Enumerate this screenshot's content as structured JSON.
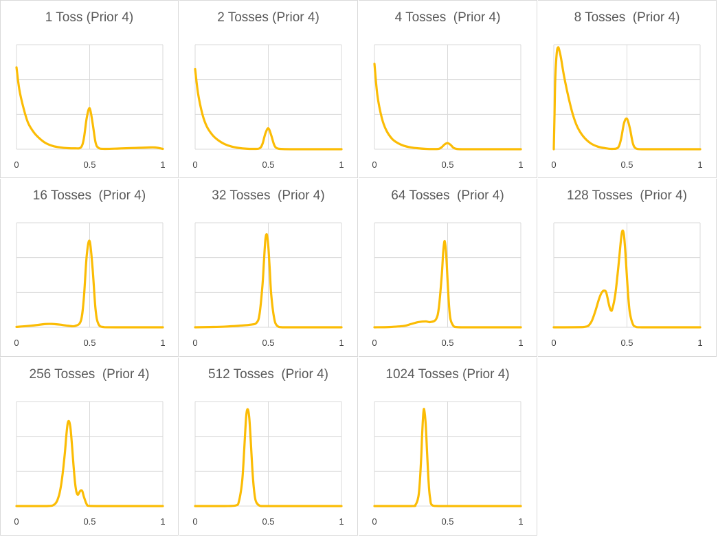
{
  "colors": {
    "series": "#fbbc05",
    "grid": "#d9d9d9",
    "title": "#595959",
    "tick": "#404040"
  },
  "chart_data": [
    {
      "type": "line",
      "title": "1 Toss (Prior 4)",
      "xlim": [
        0,
        1
      ],
      "ylim": [
        0,
        6
      ],
      "xticks": [
        "0",
        "0.5",
        "1"
      ],
      "grid": true,
      "series": [
        {
          "x": [
            0,
            0.02,
            0.05,
            0.08,
            0.12,
            0.16,
            0.2,
            0.25,
            0.3,
            0.35,
            0.4,
            0.44,
            0.46,
            0.48,
            0.5,
            0.52,
            0.54,
            0.56,
            0.6,
            0.7,
            0.8,
            0.9,
            0.95,
            1.0
          ],
          "y": [
            4.7,
            3.4,
            2.3,
            1.5,
            0.95,
            0.6,
            0.35,
            0.18,
            0.1,
            0.06,
            0.05,
            0.1,
            0.6,
            1.8,
            2.35,
            1.5,
            0.4,
            0.08,
            0.02,
            0.04,
            0.07,
            0.1,
            0.1,
            0.02
          ]
        }
      ]
    },
    {
      "type": "line",
      "title": "2 Tosses (Prior 4)",
      "xlim": [
        0,
        1
      ],
      "ylim": [
        0,
        6
      ],
      "xticks": [
        "0",
        "0.5",
        "1"
      ],
      "grid": true,
      "series": [
        {
          "x": [
            0,
            0.02,
            0.05,
            0.08,
            0.12,
            0.16,
            0.2,
            0.25,
            0.3,
            0.35,
            0.4,
            0.44,
            0.46,
            0.48,
            0.5,
            0.52,
            0.54,
            0.56,
            0.6,
            0.7,
            0.8,
            0.9,
            1.0
          ],
          "y": [
            4.6,
            3.2,
            2.0,
            1.3,
            0.8,
            0.5,
            0.3,
            0.15,
            0.07,
            0.03,
            0.02,
            0.05,
            0.3,
            0.9,
            1.2,
            0.8,
            0.25,
            0.05,
            0.01,
            0,
            0,
            0,
            0
          ]
        }
      ]
    },
    {
      "type": "line",
      "title": "4 Tosses  (Prior 4)",
      "xlim": [
        0,
        1
      ],
      "ylim": [
        0,
        6
      ],
      "xticks": [
        "0",
        "0.5",
        "1"
      ],
      "grid": true,
      "series": [
        {
          "x": [
            0,
            0.02,
            0.05,
            0.08,
            0.12,
            0.16,
            0.2,
            0.25,
            0.3,
            0.35,
            0.4,
            0.44,
            0.46,
            0.48,
            0.5,
            0.52,
            0.54,
            0.56,
            0.6,
            0.7,
            0.8,
            0.9,
            1.0
          ],
          "y": [
            4.9,
            3.1,
            1.8,
            1.1,
            0.6,
            0.35,
            0.2,
            0.1,
            0.05,
            0.02,
            0.01,
            0.02,
            0.12,
            0.28,
            0.35,
            0.25,
            0.08,
            0.02,
            0,
            0,
            0,
            0,
            0
          ]
        }
      ]
    },
    {
      "type": "line",
      "title": "8 Tosses  (Prior 4)",
      "xlim": [
        0,
        1
      ],
      "ylim": [
        0,
        6
      ],
      "xticks": [
        "0",
        "0.5",
        "1"
      ],
      "grid": true,
      "series": [
        {
          "x": [
            0,
            0.005,
            0.01,
            0.02,
            0.03,
            0.04,
            0.05,
            0.07,
            0.1,
            0.13,
            0.16,
            0.2,
            0.25,
            0.3,
            0.35,
            0.4,
            0.44,
            0.46,
            0.48,
            0.5,
            0.52,
            0.54,
            0.56,
            0.6,
            0.7,
            0.8,
            0.9,
            1.0
          ],
          "y": [
            0,
            2.0,
            4.0,
            5.5,
            5.85,
            5.6,
            5.2,
            4.2,
            3.0,
            2.0,
            1.3,
            0.75,
            0.35,
            0.15,
            0.06,
            0.02,
            0.1,
            0.6,
            1.5,
            1.75,
            1.2,
            0.35,
            0.05,
            0,
            0,
            0,
            0,
            0
          ]
        }
      ]
    },
    {
      "type": "line",
      "title": "16 Tosses  (Prior 4)",
      "xlim": [
        0,
        1
      ],
      "ylim": [
        0,
        8
      ],
      "xticks": [
        "0",
        "0.5",
        "1"
      ],
      "grid": true,
      "series": [
        {
          "x": [
            0,
            0.1,
            0.2,
            0.25,
            0.3,
            0.35,
            0.4,
            0.44,
            0.46,
            0.48,
            0.5,
            0.52,
            0.54,
            0.56,
            0.6,
            0.7,
            0.8,
            0.9,
            1.0
          ],
          "y": [
            0.03,
            0.12,
            0.25,
            0.25,
            0.2,
            0.12,
            0.1,
            0.5,
            2.2,
            5.5,
            6.6,
            4.5,
            1.4,
            0.25,
            0.01,
            0,
            0,
            0,
            0
          ]
        }
      ]
    },
    {
      "type": "line",
      "title": "32 Tosses  (Prior 4)",
      "xlim": [
        0,
        1
      ],
      "ylim": [
        0,
        8
      ],
      "xticks": [
        "0",
        "0.5",
        "1"
      ],
      "grid": true,
      "series": [
        {
          "x": [
            0,
            0.1,
            0.2,
            0.3,
            0.38,
            0.42,
            0.44,
            0.46,
            0.47,
            0.48,
            0.49,
            0.5,
            0.51,
            0.52,
            0.54,
            0.56,
            0.6,
            0.7,
            0.8,
            1.0
          ],
          "y": [
            0,
            0.02,
            0.05,
            0.12,
            0.2,
            0.35,
            1.0,
            3.2,
            5.0,
            6.7,
            7.1,
            6.2,
            4.4,
            2.5,
            0.7,
            0.12,
            0,
            0,
            0,
            0
          ]
        }
      ]
    },
    {
      "type": "line",
      "title": "64 Tosses  (Prior 4)",
      "xlim": [
        0,
        1
      ],
      "ylim": [
        0,
        8
      ],
      "xticks": [
        "0",
        "0.5",
        "1"
      ],
      "grid": true,
      "series": [
        {
          "x": [
            0,
            0.1,
            0.2,
            0.25,
            0.3,
            0.35,
            0.38,
            0.42,
            0.44,
            0.46,
            0.47,
            0.48,
            0.49,
            0.5,
            0.51,
            0.52,
            0.54,
            0.56,
            0.6,
            0.7,
            0.8,
            1.0
          ],
          "y": [
            0,
            0.02,
            0.1,
            0.25,
            0.4,
            0.45,
            0.4,
            0.6,
            1.5,
            4.0,
            5.8,
            6.6,
            5.6,
            3.5,
            1.6,
            0.6,
            0.1,
            0.02,
            0,
            0,
            0,
            0
          ]
        }
      ]
    },
    {
      "type": "line",
      "title": "128 Tosses  (Prior 4)",
      "xlim": [
        0,
        1
      ],
      "ylim": [
        0,
        8
      ],
      "xticks": [
        "0",
        "0.5",
        "1"
      ],
      "grid": true,
      "series": [
        {
          "x": [
            0,
            0.2,
            0.25,
            0.28,
            0.31,
            0.33,
            0.35,
            0.36,
            0.37,
            0.38,
            0.39,
            0.4,
            0.42,
            0.44,
            0.46,
            0.47,
            0.48,
            0.49,
            0.5,
            0.51,
            0.52,
            0.54,
            0.56,
            0.6,
            0.8,
            1.0
          ],
          "y": [
            0,
            0.02,
            0.3,
            1.1,
            2.2,
            2.7,
            2.8,
            2.6,
            2.1,
            1.6,
            1.3,
            1.4,
            2.5,
            4.5,
            6.8,
            7.4,
            7.0,
            5.6,
            3.8,
            2.2,
            1.1,
            0.25,
            0.04,
            0,
            0,
            0
          ]
        }
      ]
    },
    {
      "type": "line",
      "title": "256 Tosses  (Prior 4)",
      "xlim": [
        0,
        1
      ],
      "ylim": [
        0,
        12
      ],
      "xticks": [
        "0",
        "0.5",
        "1"
      ],
      "grid": true,
      "series": [
        {
          "x": [
            0,
            0.2,
            0.26,
            0.29,
            0.31,
            0.33,
            0.34,
            0.35,
            0.36,
            0.37,
            0.38,
            0.39,
            0.4,
            0.41,
            0.42,
            0.43,
            0.44,
            0.45,
            0.46,
            0.48,
            0.5,
            0.6,
            1.0
          ],
          "y": [
            0,
            0,
            0.2,
            1.2,
            3.0,
            6.0,
            8.0,
            9.5,
            9.7,
            8.8,
            6.8,
            4.6,
            2.7,
            1.6,
            1.3,
            1.6,
            1.8,
            1.7,
            1.1,
            0.2,
            0.02,
            0,
            0
          ]
        }
      ]
    },
    {
      "type": "line",
      "title": "512 Tosses  (Prior 4)",
      "xlim": [
        0,
        1
      ],
      "ylim": [
        0,
        16
      ],
      "xticks": [
        "0",
        "0.5",
        "1"
      ],
      "grid": true,
      "series": [
        {
          "x": [
            0,
            0.2,
            0.28,
            0.3,
            0.32,
            0.33,
            0.34,
            0.35,
            0.36,
            0.37,
            0.38,
            0.39,
            0.4,
            0.41,
            0.42,
            0.44,
            0.46,
            0.5,
            1.0
          ],
          "y": [
            0,
            0,
            0.1,
            0.8,
            3.5,
            6.5,
            10.5,
            14.0,
            14.8,
            13.5,
            10.0,
            6.0,
            3.0,
            1.2,
            0.5,
            0.06,
            0,
            0,
            0
          ]
        }
      ]
    },
    {
      "type": "line",
      "title": "1024 Tosses (Prior 4)",
      "xlim": [
        0,
        1
      ],
      "ylim": [
        0,
        28
      ],
      "xticks": [
        "0",
        "0.5",
        "1"
      ],
      "grid": true,
      "series": [
        {
          "x": [
            0,
            0.25,
            0.28,
            0.3,
            0.31,
            0.32,
            0.325,
            0.33,
            0.335,
            0.34,
            0.35,
            0.36,
            0.37,
            0.38,
            0.4,
            0.5,
            1.0
          ],
          "y": [
            0,
            0,
            0.3,
            2.5,
            6.5,
            13.5,
            18.5,
            22.5,
            25.3,
            25.8,
            22.0,
            14.0,
            6.5,
            2.2,
            0.1,
            0,
            0
          ]
        }
      ]
    }
  ]
}
